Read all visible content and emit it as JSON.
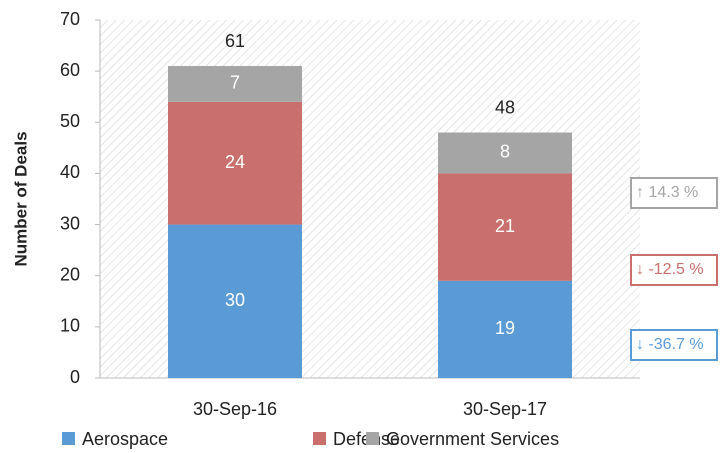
{
  "chart_data": {
    "type": "stacked_bar",
    "ylabel": "Number of Deals",
    "categories": [
      "30-Sep-16",
      "30-Sep-17"
    ],
    "series": [
      {
        "name": "Aerospace",
        "color": "#5b9bd5",
        "values": [
          30,
          19
        ]
      },
      {
        "name": "Defense",
        "color": "#c9706e",
        "values": [
          24,
          21
        ]
      },
      {
        "name": "Government Services",
        "color": "#a5a5a5",
        "values": [
          7,
          8
        ]
      }
    ],
    "totals": [
      61,
      48
    ],
    "ylim": [
      0,
      70
    ],
    "yticks": [
      0,
      10,
      20,
      30,
      40,
      50,
      60,
      70
    ],
    "legend": "bottom",
    "annotations": [
      {
        "text": "↑ 14.3 %",
        "color": "#a5a5a5"
      },
      {
        "text": "↓ -12.5 %",
        "color": "#c9706e"
      },
      {
        "text": "↓ -36.7 %",
        "color": "#5b9bd5"
      }
    ]
  }
}
